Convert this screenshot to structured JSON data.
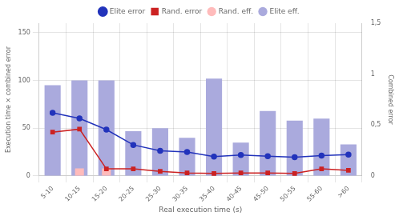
{
  "chart_data": {
    "type": "bar",
    "categories": [
      "5-10",
      "10-15",
      "15-20",
      "20-25",
      "25-30",
      "30-35",
      "35-40",
      "40-45",
      "45-50",
      "50-55",
      "55-60",
      ">60"
    ],
    "xlabel": "Real execution time (s)",
    "ylabel": "Execution time × combined error",
    "y2label": "Combined error",
    "ylim": [
      0,
      160
    ],
    "yticks": [
      0,
      50,
      100,
      150
    ],
    "y2lim": [
      0,
      1.5
    ],
    "y2ticks": [
      0,
      {
        "value": 0.5,
        "label": "0,5"
      },
      1,
      {
        "value": 1.5,
        "label": "1,5"
      }
    ],
    "grid": true,
    "legend": "top",
    "series": [
      {
        "name": "Elite eff.",
        "type": "bar",
        "color": "#aaaadd",
        "values": [
          95,
          100,
          100,
          47,
          50,
          40,
          102,
          35,
          68,
          58,
          60,
          33
        ]
      },
      {
        "name": "Rand. eff.",
        "type": "bar",
        "color": "#ffbbbb",
        "values": [
          0,
          8,
          8,
          0,
          0,
          0,
          0,
          0,
          0,
          0,
          0,
          0
        ]
      },
      {
        "name": "Elite error",
        "type": "line",
        "color": "#2233bb",
        "marker": "circle",
        "axis": "y2",
        "values": [
          0.62,
          0.565,
          0.455,
          0.305,
          0.248,
          0.235,
          0.19,
          0.205,
          0.195,
          0.185,
          0.2,
          0.21
        ]
      },
      {
        "name": "Rand. error",
        "type": "line",
        "color": "#cc2222",
        "marker": "square",
        "axis": "y2",
        "values": [
          0.43,
          0.46,
          0.07,
          0.07,
          0.045,
          0.03,
          0.025,
          0.03,
          0.03,
          0.025,
          0.07,
          0.055
        ]
      }
    ]
  }
}
